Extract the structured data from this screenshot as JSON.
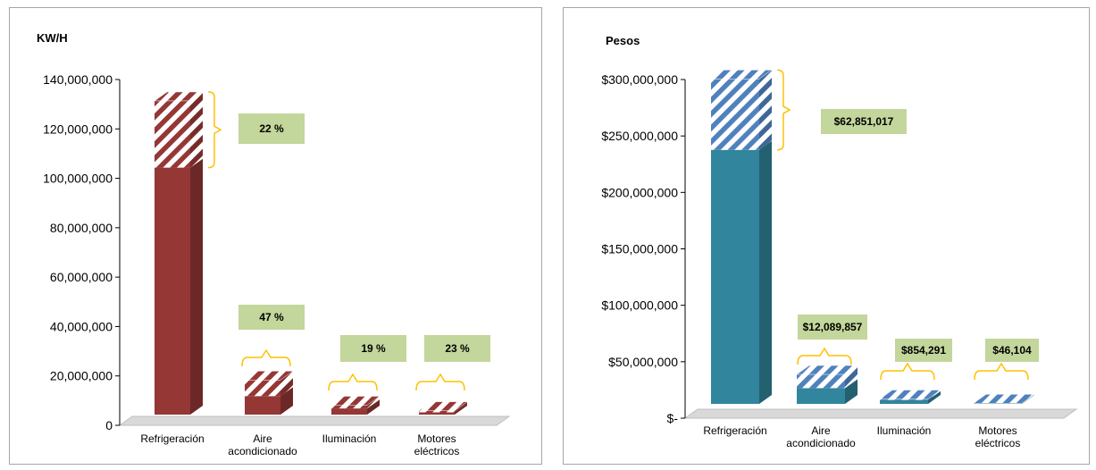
{
  "colors": {
    "left_solid": "#953735",
    "left_stripe_fg": "#953735",
    "right_solid": "#31859c",
    "right_stripe_fg": "#4f81bd",
    "bracket": "#ffc000",
    "label_box": "#c3d69b",
    "floor": "#d9d9d9",
    "axis": "#000000"
  },
  "chart_data": [
    {
      "type": "bar",
      "stacked": true,
      "ylabel": "KW/H",
      "categories": [
        "Refrigeración",
        "Aire acondicionado",
        "Iluminación",
        "Motores eléctricos"
      ],
      "category_lines": [
        [
          "Refrigeración"
        ],
        [
          "Aire",
          "acondicionado"
        ],
        [
          "Iluminación"
        ],
        [
          "Motores",
          "eléctricos"
        ]
      ],
      "series": [
        {
          "values": [
            100000000,
            7500000,
            2500000,
            900000
          ]
        },
        {
          "values": [
            27000000,
            6500000,
            1300000,
            700000
          ]
        }
      ],
      "annotations": [
        "22 %",
        "47 %",
        "19 %",
        "23 %"
      ],
      "ylim": [
        0,
        140000000
      ],
      "yticks": [
        0,
        20000000,
        40000000,
        60000000,
        80000000,
        100000000,
        120000000,
        140000000
      ],
      "ytick_labels": [
        "0",
        "20,000,000",
        "40,000,000",
        "60,000,000",
        "80,000,000",
        "100,000,000",
        "120,000,000",
        "140,000,000"
      ],
      "grid": false
    },
    {
      "type": "bar",
      "stacked": true,
      "ylabel": "Pesos",
      "categories": [
        "Refrigeración",
        "Aire acondicionado",
        "Iluminación",
        "Motores eléctricos"
      ],
      "category_lines": [
        [
          "Refrigeración"
        ],
        [
          "Aire",
          "acondicionado"
        ],
        [
          "Iluminación"
        ],
        [
          "Motores",
          "eléctricos"
        ]
      ],
      "series": [
        {
          "values": [
            225000000,
            14000000,
            3500000,
            500000
          ]
        },
        {
          "values": [
            62851017,
            12089857,
            854291,
            46104
          ]
        }
      ],
      "annotations": [
        "$62,851,017",
        "$12,089,857",
        "$854,291",
        "$46,104"
      ],
      "ylim": [
        0,
        300000000
      ],
      "yticks": [
        0,
        50000000,
        100000000,
        150000000,
        200000000,
        250000000,
        300000000
      ],
      "ytick_labels": [
        "$-",
        "$50,000,000",
        "$100,000,000",
        "$150,000,000",
        "$200,000,000",
        "$250,000,000",
        "$300,000,000"
      ],
      "grid": false
    }
  ]
}
